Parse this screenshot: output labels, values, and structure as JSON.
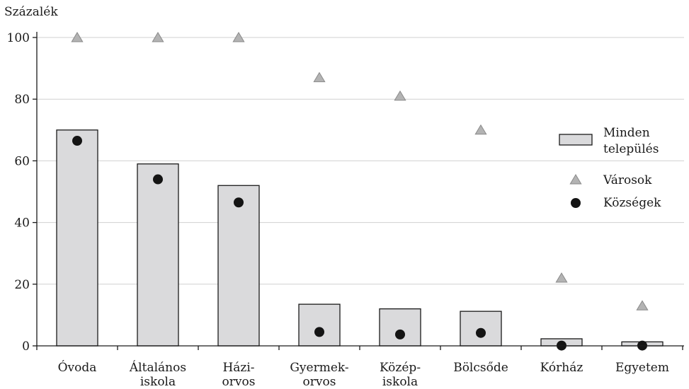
{
  "chart_data": {
    "type": "bar",
    "ylabel": "Százalék",
    "ylim": [
      0,
      100
    ],
    "yticks": [
      0,
      20,
      40,
      60,
      80,
      100
    ],
    "grid": true,
    "legend_position": "right",
    "categories": [
      [
        "Óvoda"
      ],
      [
        "Általános",
        "iskola"
      ],
      [
        "Házi-",
        "orvos"
      ],
      [
        "Gyermek-",
        "orvos"
      ],
      [
        "Közép-",
        "iskola"
      ],
      [
        "Bölcsőde"
      ],
      [
        "Kórház"
      ],
      [
        "Egyetem"
      ]
    ],
    "series": [
      {
        "name": "Minden település",
        "marker": "bar",
        "values": [
          70,
          59,
          52,
          13.5,
          12,
          11.2,
          2.3,
          1.3
        ]
      },
      {
        "name": "Városok",
        "marker": "triangle",
        "values": [
          100,
          100,
          100,
          87,
          81,
          70,
          22,
          13
        ]
      },
      {
        "name": "Községek",
        "marker": "circle",
        "values": [
          66.5,
          54,
          46.5,
          4.5,
          3.7,
          4.2,
          0.1,
          0.1
        ]
      }
    ],
    "legend_lines": [
      [
        "Minden",
        "település"
      ],
      [
        "Városok"
      ],
      [
        "Községek"
      ]
    ],
    "colors": {
      "bar_fill": "#dadadc",
      "bar_stroke": "#1a1a1a",
      "triangle_fill": "#b3b3b3",
      "triangle_stroke": "#8a8a8a",
      "circle_fill": "#141414",
      "grid": "#d0d0d0",
      "axis": "#1a1a1a"
    }
  }
}
